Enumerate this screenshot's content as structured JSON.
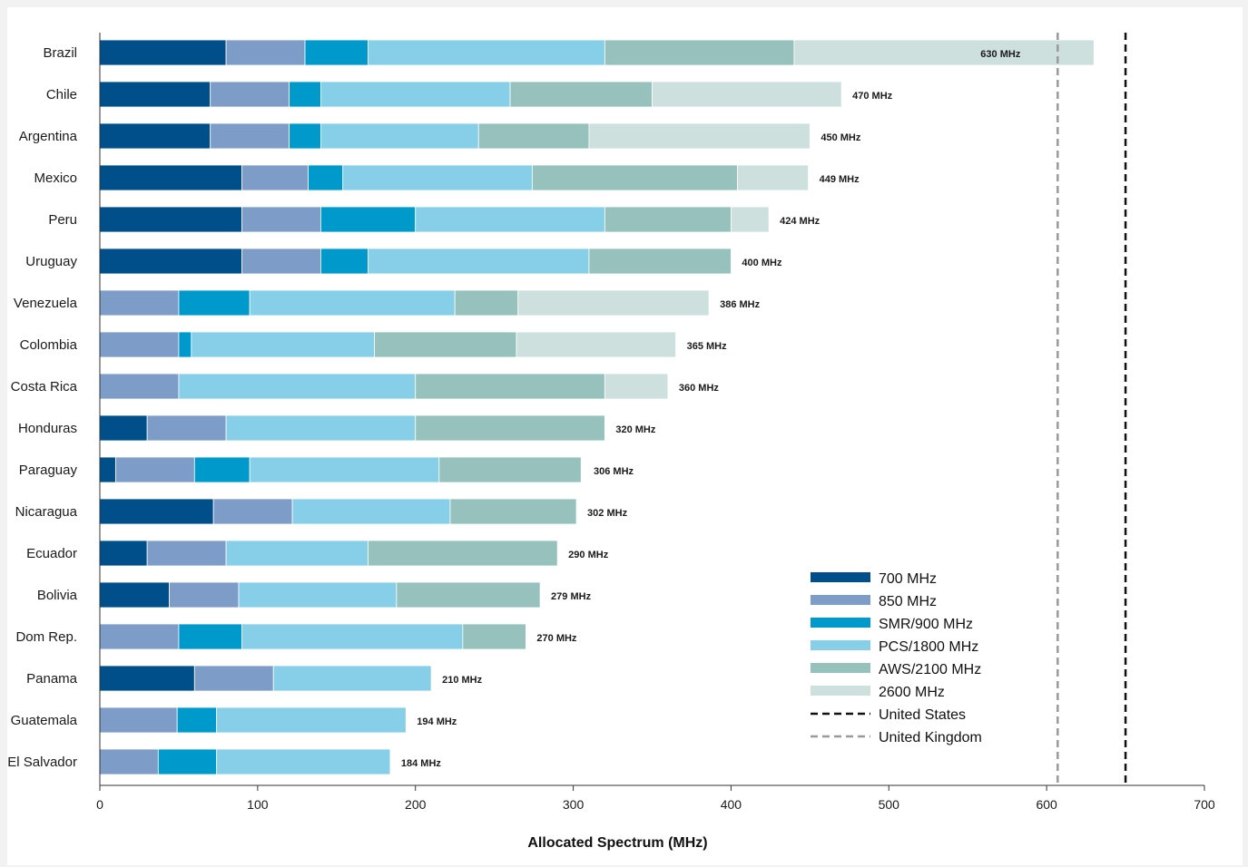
{
  "chart_data": {
    "type": "bar",
    "orientation": "horizontal",
    "stacked": true,
    "title": "",
    "xlabel": "Allocated Spectrum (MHz)",
    "ylabel": "",
    "xlim": [
      0,
      700
    ],
    "xticks": [
      0,
      100,
      200,
      300,
      400,
      500,
      600,
      700
    ],
    "grid": false,
    "legend_position": "bottom-right",
    "categories": [
      "Brazil",
      "Chile",
      "Argentina",
      "Mexico",
      "Peru",
      "Uruguay",
      "Venezuela",
      "Colombia",
      "Costa Rica",
      "Honduras",
      "Paraguay",
      "Nicaragua",
      "Ecuador",
      "Bolivia",
      "Dom Rep.",
      "Panama",
      "Guatemala",
      "El Salvador"
    ],
    "totals_labels": [
      "630 MHz",
      "470 MHz",
      "450 MHz",
      "449 MHz",
      "424 MHz",
      "400 MHz",
      "386 MHz",
      "365 MHz",
      "360 MHz",
      "320 MHz",
      "306 MHz",
      "302 MHz",
      "290 MHz",
      "279 MHz",
      "270 MHz",
      "210 MHz",
      "194 MHz",
      "184 MHz"
    ],
    "totals": [
      630,
      470,
      450,
      449,
      424,
      400,
      386,
      365,
      360,
      320,
      306,
      302,
      290,
      279,
      270,
      210,
      194,
      184
    ],
    "series": [
      {
        "name": "700 MHz",
        "color": "#004f8b",
        "values": [
          80,
          70,
          70,
          90,
          90,
          90,
          0,
          0,
          0,
          30,
          10,
          72,
          30,
          44,
          0,
          60,
          0,
          0
        ]
      },
      {
        "name": "850 MHz",
        "color": "#7d9cc8",
        "values": [
          50,
          50,
          50,
          42,
          50,
          50,
          50,
          50,
          50,
          50,
          50,
          50,
          50,
          44,
          50,
          50,
          49,
          37
        ]
      },
      {
        "name": "SMR/900 MHz",
        "color": "#0099cc",
        "values": [
          40,
          20,
          20,
          22,
          60,
          30,
          45,
          8,
          0,
          0,
          35,
          0,
          0,
          0,
          40,
          0,
          25,
          37
        ]
      },
      {
        "name": "PCS/1800 MHz",
        "color": "#87cfe8",
        "values": [
          150,
          120,
          100,
          120,
          120,
          140,
          130,
          116,
          150,
          120,
          120,
          100,
          90,
          100,
          140,
          100,
          120,
          110
        ]
      },
      {
        "name": "AWS/2100 MHz",
        "color": "#97c1bd",
        "values": [
          120,
          90,
          70,
          130,
          80,
          90,
          40,
          90,
          120,
          120,
          90,
          80,
          120,
          91,
          40,
          0,
          0,
          0
        ]
      },
      {
        "name": "2600 MHz",
        "color": "#cde0de",
        "values": [
          190,
          120,
          140,
          45,
          24,
          0,
          121,
          101,
          40,
          0,
          0,
          0,
          0,
          0,
          0,
          0,
          0,
          0
        ]
      }
    ],
    "reference_lines": [
      {
        "name": "United States",
        "value": 650,
        "color": "#111111",
        "style": "dashed"
      },
      {
        "name": "United Kingdom",
        "value": 607,
        "color": "#9a9a9a",
        "style": "dashed"
      }
    ]
  }
}
